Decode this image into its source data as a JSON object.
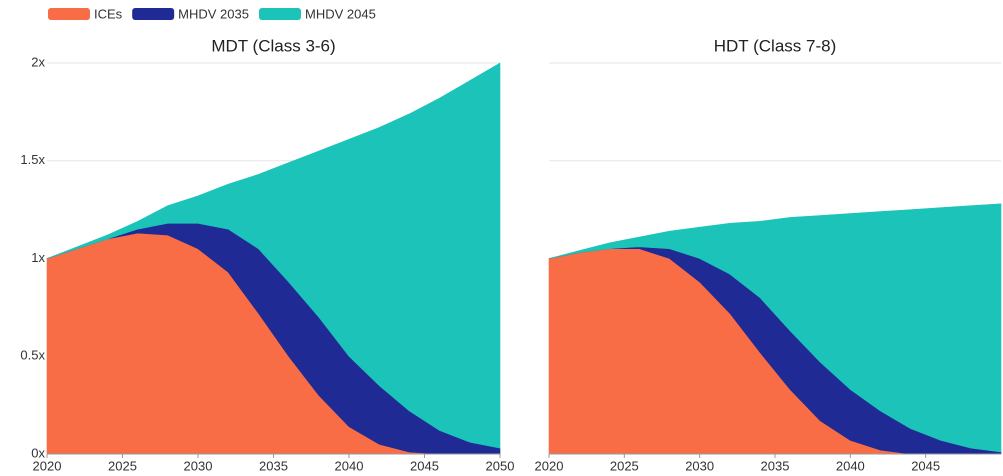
{
  "chart_data": [
    {
      "type": "stacked-area",
      "title": "MDT (Class 3-6)",
      "x": [
        2020,
        2022,
        2024,
        2026,
        2028,
        2030,
        2032,
        2034,
        2036,
        2038,
        2040,
        2042,
        2044,
        2046,
        2048,
        2050
      ],
      "series": [
        {
          "name": "ICEs",
          "color": "#f96d46",
          "values": [
            1.0,
            1.05,
            1.1,
            1.13,
            1.12,
            1.05,
            0.93,
            0.72,
            0.5,
            0.3,
            0.14,
            0.05,
            0.01,
            0,
            0,
            0
          ]
        },
        {
          "name": "MHDV 2035",
          "color": "#1f2a94",
          "values": [
            0,
            0,
            0,
            0.02,
            0.06,
            0.13,
            0.22,
            0.33,
            0.38,
            0.4,
            0.36,
            0.3,
            0.21,
            0.12,
            0.06,
            0.03
          ]
        },
        {
          "name": "MHDV 2045",
          "color": "#1cc3b9",
          "values": [
            0,
            0.01,
            0.02,
            0.04,
            0.09,
            0.14,
            0.23,
            0.38,
            0.61,
            0.85,
            1.11,
            1.32,
            1.52,
            1.7,
            1.85,
            1.97
          ]
        }
      ],
      "xlim": [
        2020,
        2050
      ],
      "xticks": [
        2020,
        2025,
        2030,
        2035,
        2040,
        2045,
        2050
      ],
      "ylim": [
        0,
        2
      ],
      "yticks": [
        {
          "value": 0,
          "label": "0x"
        },
        {
          "value": 0.5,
          "label": "0.5x"
        },
        {
          "value": 1,
          "label": "1x"
        },
        {
          "value": 1.5,
          "label": "1.5x"
        },
        {
          "value": 2,
          "label": "2x"
        }
      ],
      "grid": true,
      "legend": "top-left"
    },
    {
      "type": "stacked-area",
      "title": "HDT (Class 7-8)",
      "x": [
        2020,
        2022,
        2024,
        2026,
        2028,
        2030,
        2032,
        2034,
        2036,
        2038,
        2040,
        2042,
        2044,
        2046,
        2048,
        2050
      ],
      "series": [
        {
          "name": "ICEs",
          "color": "#f96d46",
          "values": [
            1.0,
            1.03,
            1.05,
            1.05,
            1.0,
            0.88,
            0.72,
            0.52,
            0.33,
            0.17,
            0.07,
            0.02,
            0,
            0,
            0,
            0
          ]
        },
        {
          "name": "MHDV 2035",
          "color": "#1f2a94",
          "values": [
            0,
            0,
            0,
            0.01,
            0.05,
            0.12,
            0.2,
            0.28,
            0.3,
            0.3,
            0.26,
            0.2,
            0.13,
            0.07,
            0.03,
            0.01
          ]
        },
        {
          "name": "MHDV 2045",
          "color": "#1cc3b9",
          "values": [
            0,
            0.01,
            0.03,
            0.05,
            0.09,
            0.16,
            0.26,
            0.39,
            0.58,
            0.75,
            0.9,
            1.02,
            1.12,
            1.19,
            1.24,
            1.27
          ]
        }
      ],
      "xlim": [
        2020,
        2050
      ],
      "xticks": [
        2020,
        2025,
        2030,
        2035,
        2040,
        2045
      ],
      "ylim": [
        0,
        2
      ],
      "yticks": [
        0,
        0.5,
        1,
        1.5,
        2
      ],
      "ytick_labels": false,
      "grid": true
    }
  ]
}
